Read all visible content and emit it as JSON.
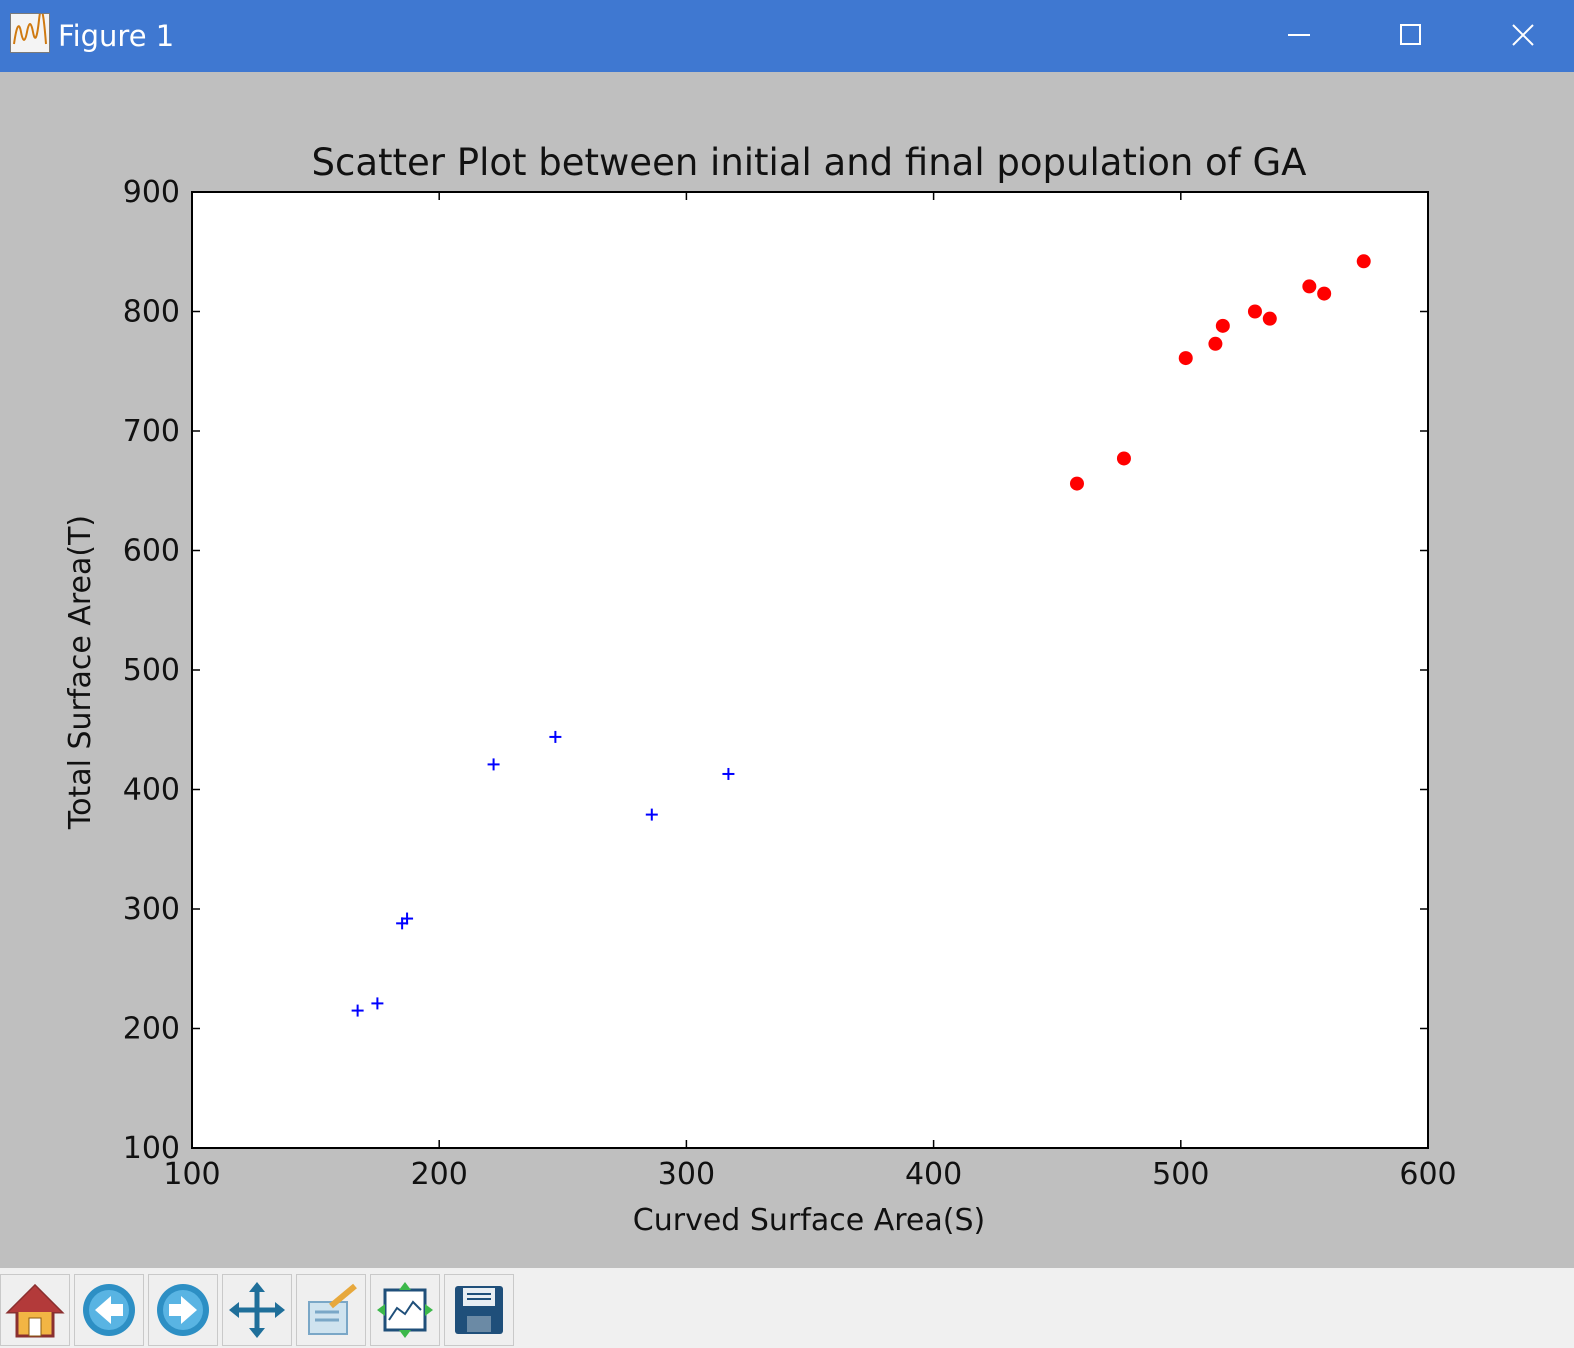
{
  "window": {
    "title": "Figure 1",
    "accent_color": "#3f78d1"
  },
  "toolbar": {
    "buttons": [
      {
        "name": "home-icon",
        "action": "Home"
      },
      {
        "name": "back-arrow-icon",
        "action": "Back"
      },
      {
        "name": "forward-arrow-icon",
        "action": "Forward"
      },
      {
        "name": "pan-icon",
        "action": "Pan"
      },
      {
        "name": "zoom-rect-icon",
        "action": "Zoom"
      },
      {
        "name": "subplots-config-icon",
        "action": "Configure subplots"
      },
      {
        "name": "save-floppy-icon",
        "action": "Save"
      }
    ]
  },
  "chart_data": {
    "type": "scatter",
    "title": "Scatter Plot between initial and final population of GA",
    "xlabel": "Curved Surface Area(S)",
    "ylabel": "Total Surface Area(T)",
    "xlim": [
      100,
      600
    ],
    "ylim": [
      100,
      900
    ],
    "xticks": [
      "100",
      "200",
      "300",
      "400",
      "500",
      "600"
    ],
    "yticks": [
      "100",
      "200",
      "300",
      "400",
      "500",
      "600",
      "700",
      "800",
      "900"
    ],
    "grid": false,
    "legend": null,
    "series": [
      {
        "marker": "plus",
        "color": "#0000ff",
        "points": [
          {
            "x": 167,
            "y": 215
          },
          {
            "x": 175,
            "y": 221
          },
          {
            "x": 185,
            "y": 288
          },
          {
            "x": 187,
            "y": 292
          },
          {
            "x": 222,
            "y": 421
          },
          {
            "x": 247,
            "y": 444
          },
          {
            "x": 286,
            "y": 379
          },
          {
            "x": 317,
            "y": 413
          }
        ]
      },
      {
        "marker": "circle",
        "color": "#ff0000",
        "points": [
          {
            "x": 458,
            "y": 656
          },
          {
            "x": 477,
            "y": 677
          },
          {
            "x": 502,
            "y": 761
          },
          {
            "x": 514,
            "y": 773
          },
          {
            "x": 517,
            "y": 788
          },
          {
            "x": 530,
            "y": 800
          },
          {
            "x": 536,
            "y": 794
          },
          {
            "x": 552,
            "y": 821
          },
          {
            "x": 558,
            "y": 815
          },
          {
            "x": 574,
            "y": 842
          }
        ]
      }
    ]
  }
}
